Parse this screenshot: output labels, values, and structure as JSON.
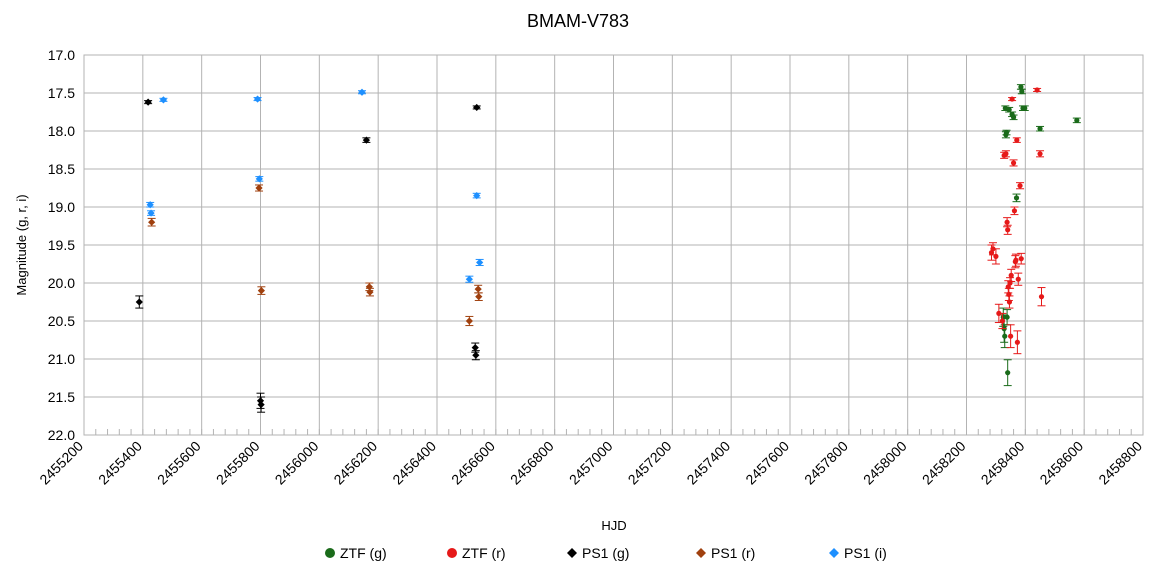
{
  "chart_data": {
    "type": "scatter",
    "title": "BMAM-V783",
    "xlabel": "HJD",
    "ylabel": "Magnitude (g, r, i)",
    "xlim": [
      2455200,
      2458800
    ],
    "ylim": [
      17.0,
      22.0
    ],
    "y_inverted": true,
    "x_ticks": [
      "2455200",
      "2455400",
      "2455600",
      "2455800",
      "2456000",
      "2456200",
      "2456400",
      "2456600",
      "2456800",
      "2457000",
      "2457200",
      "2457400",
      "2457600",
      "2457800",
      "2458000",
      "2458200",
      "2458400",
      "2458600",
      "2458800"
    ],
    "y_ticks": [
      "17.0",
      "17.5",
      "18.0",
      "18.5",
      "19.0",
      "19.5",
      "20.0",
      "20.5",
      "21.0",
      "21.5",
      "22.0"
    ],
    "grid": true,
    "legend_position": "bottom",
    "series": [
      {
        "name": "ZTF (g)",
        "color": "#1a6b1a",
        "marker": "circle",
        "points": [
          {
            "x": 2458325,
            "y": 20.45,
            "err": 0.12
          },
          {
            "x": 2458328,
            "y": 20.6,
            "err": 0.18
          },
          {
            "x": 2458330,
            "y": 20.7,
            "err": 0.15
          },
          {
            "x": 2458332,
            "y": 17.7,
            "err": 0.03
          },
          {
            "x": 2458334,
            "y": 18.05,
            "err": 0.04
          },
          {
            "x": 2458336,
            "y": 18.02,
            "err": 0.03
          },
          {
            "x": 2458338,
            "y": 20.45,
            "err": 0.1
          },
          {
            "x": 2458340,
            "y": 21.18,
            "err": 0.17
          },
          {
            "x": 2458345,
            "y": 17.72,
            "err": 0.03
          },
          {
            "x": 2458355,
            "y": 17.78,
            "err": 0.03
          },
          {
            "x": 2458360,
            "y": 17.82,
            "err": 0.03
          },
          {
            "x": 2458370,
            "y": 18.88,
            "err": 0.05
          },
          {
            "x": 2458385,
            "y": 17.42,
            "err": 0.03
          },
          {
            "x": 2458388,
            "y": 17.48,
            "err": 0.03
          },
          {
            "x": 2458392,
            "y": 17.7,
            "err": 0.03
          },
          {
            "x": 2458398,
            "y": 17.7,
            "err": 0.03
          },
          {
            "x": 2458450,
            "y": 17.97,
            "err": 0.03
          },
          {
            "x": 2458575,
            "y": 17.86,
            "err": 0.03
          }
        ]
      },
      {
        "name": "ZTF (r)",
        "color": "#e61919",
        "marker": "circle",
        "points": [
          {
            "x": 2458285,
            "y": 19.6,
            "err": 0.1
          },
          {
            "x": 2458290,
            "y": 19.55,
            "err": 0.08
          },
          {
            "x": 2458300,
            "y": 19.65,
            "err": 0.1
          },
          {
            "x": 2458310,
            "y": 20.4,
            "err": 0.12
          },
          {
            "x": 2458322,
            "y": 20.5,
            "err": 0.1
          },
          {
            "x": 2458328,
            "y": 18.32,
            "err": 0.04
          },
          {
            "x": 2458334,
            "y": 18.3,
            "err": 0.04
          },
          {
            "x": 2458338,
            "y": 19.2,
            "err": 0.06
          },
          {
            "x": 2458340,
            "y": 19.3,
            "err": 0.06
          },
          {
            "x": 2458342,
            "y": 20.05,
            "err": 0.08
          },
          {
            "x": 2458344,
            "y": 20.15,
            "err": 0.08
          },
          {
            "x": 2458346,
            "y": 20.25,
            "err": 0.08
          },
          {
            "x": 2458348,
            "y": 20.0,
            "err": 0.07
          },
          {
            "x": 2458350,
            "y": 20.7,
            "err": 0.15
          },
          {
            "x": 2458352,
            "y": 19.9,
            "err": 0.08
          },
          {
            "x": 2458355,
            "y": 17.58,
            "err": 0.02
          },
          {
            "x": 2458360,
            "y": 18.42,
            "err": 0.04
          },
          {
            "x": 2458363,
            "y": 19.05,
            "err": 0.05
          },
          {
            "x": 2458366,
            "y": 19.72,
            "err": 0.08
          },
          {
            "x": 2458368,
            "y": 19.7,
            "err": 0.08
          },
          {
            "x": 2458371,
            "y": 18.12,
            "err": 0.03
          },
          {
            "x": 2458373,
            "y": 20.78,
            "err": 0.15
          },
          {
            "x": 2458376,
            "y": 19.95,
            "err": 0.08
          },
          {
            "x": 2458382,
            "y": 18.72,
            "err": 0.04
          },
          {
            "x": 2458386,
            "y": 19.68,
            "err": 0.07
          },
          {
            "x": 2458440,
            "y": 17.46,
            "err": 0.02
          },
          {
            "x": 2458450,
            "y": 18.3,
            "err": 0.04
          },
          {
            "x": 2458455,
            "y": 20.18,
            "err": 0.12
          }
        ]
      },
      {
        "name": "PS1 (g)",
        "color": "#000000",
        "marker": "diamond",
        "points": [
          {
            "x": 2455388,
            "y": 20.25,
            "err": 0.08
          },
          {
            "x": 2455418,
            "y": 17.62,
            "err": 0.02
          },
          {
            "x": 2455800,
            "y": 21.55,
            "err": 0.1
          },
          {
            "x": 2455802,
            "y": 21.6,
            "err": 0.1
          },
          {
            "x": 2456160,
            "y": 18.12,
            "err": 0.03
          },
          {
            "x": 2456530,
            "y": 20.85,
            "err": 0.06
          },
          {
            "x": 2456532,
            "y": 20.95,
            "err": 0.06
          },
          {
            "x": 2456535,
            "y": 17.69,
            "err": 0.02
          }
        ]
      },
      {
        "name": "PS1 (r)",
        "color": "#a0400e",
        "marker": "diamond",
        "points": [
          {
            "x": 2455430,
            "y": 19.2,
            "err": 0.05
          },
          {
            "x": 2455795,
            "y": 18.75,
            "err": 0.04
          },
          {
            "x": 2455803,
            "y": 20.1,
            "err": 0.05
          },
          {
            "x": 2456170,
            "y": 20.05,
            "err": 0.05
          },
          {
            "x": 2456172,
            "y": 20.12,
            "err": 0.05
          },
          {
            "x": 2456510,
            "y": 20.5,
            "err": 0.06
          },
          {
            "x": 2456540,
            "y": 20.08,
            "err": 0.05
          },
          {
            "x": 2456542,
            "y": 20.18,
            "err": 0.05
          }
        ]
      },
      {
        "name": "PS1 (i)",
        "color": "#1e90ff",
        "marker": "diamond",
        "points": [
          {
            "x": 2455425,
            "y": 18.97,
            "err": 0.03
          },
          {
            "x": 2455428,
            "y": 19.08,
            "err": 0.03
          },
          {
            "x": 2455470,
            "y": 17.59,
            "err": 0.02
          },
          {
            "x": 2455790,
            "y": 17.58,
            "err": 0.02
          },
          {
            "x": 2455796,
            "y": 18.63,
            "err": 0.03
          },
          {
            "x": 2456145,
            "y": 17.49,
            "err": 0.02
          },
          {
            "x": 2456510,
            "y": 19.95,
            "err": 0.04
          },
          {
            "x": 2456535,
            "y": 18.85,
            "err": 0.03
          },
          {
            "x": 2456545,
            "y": 19.73,
            "err": 0.04
          }
        ]
      }
    ]
  }
}
